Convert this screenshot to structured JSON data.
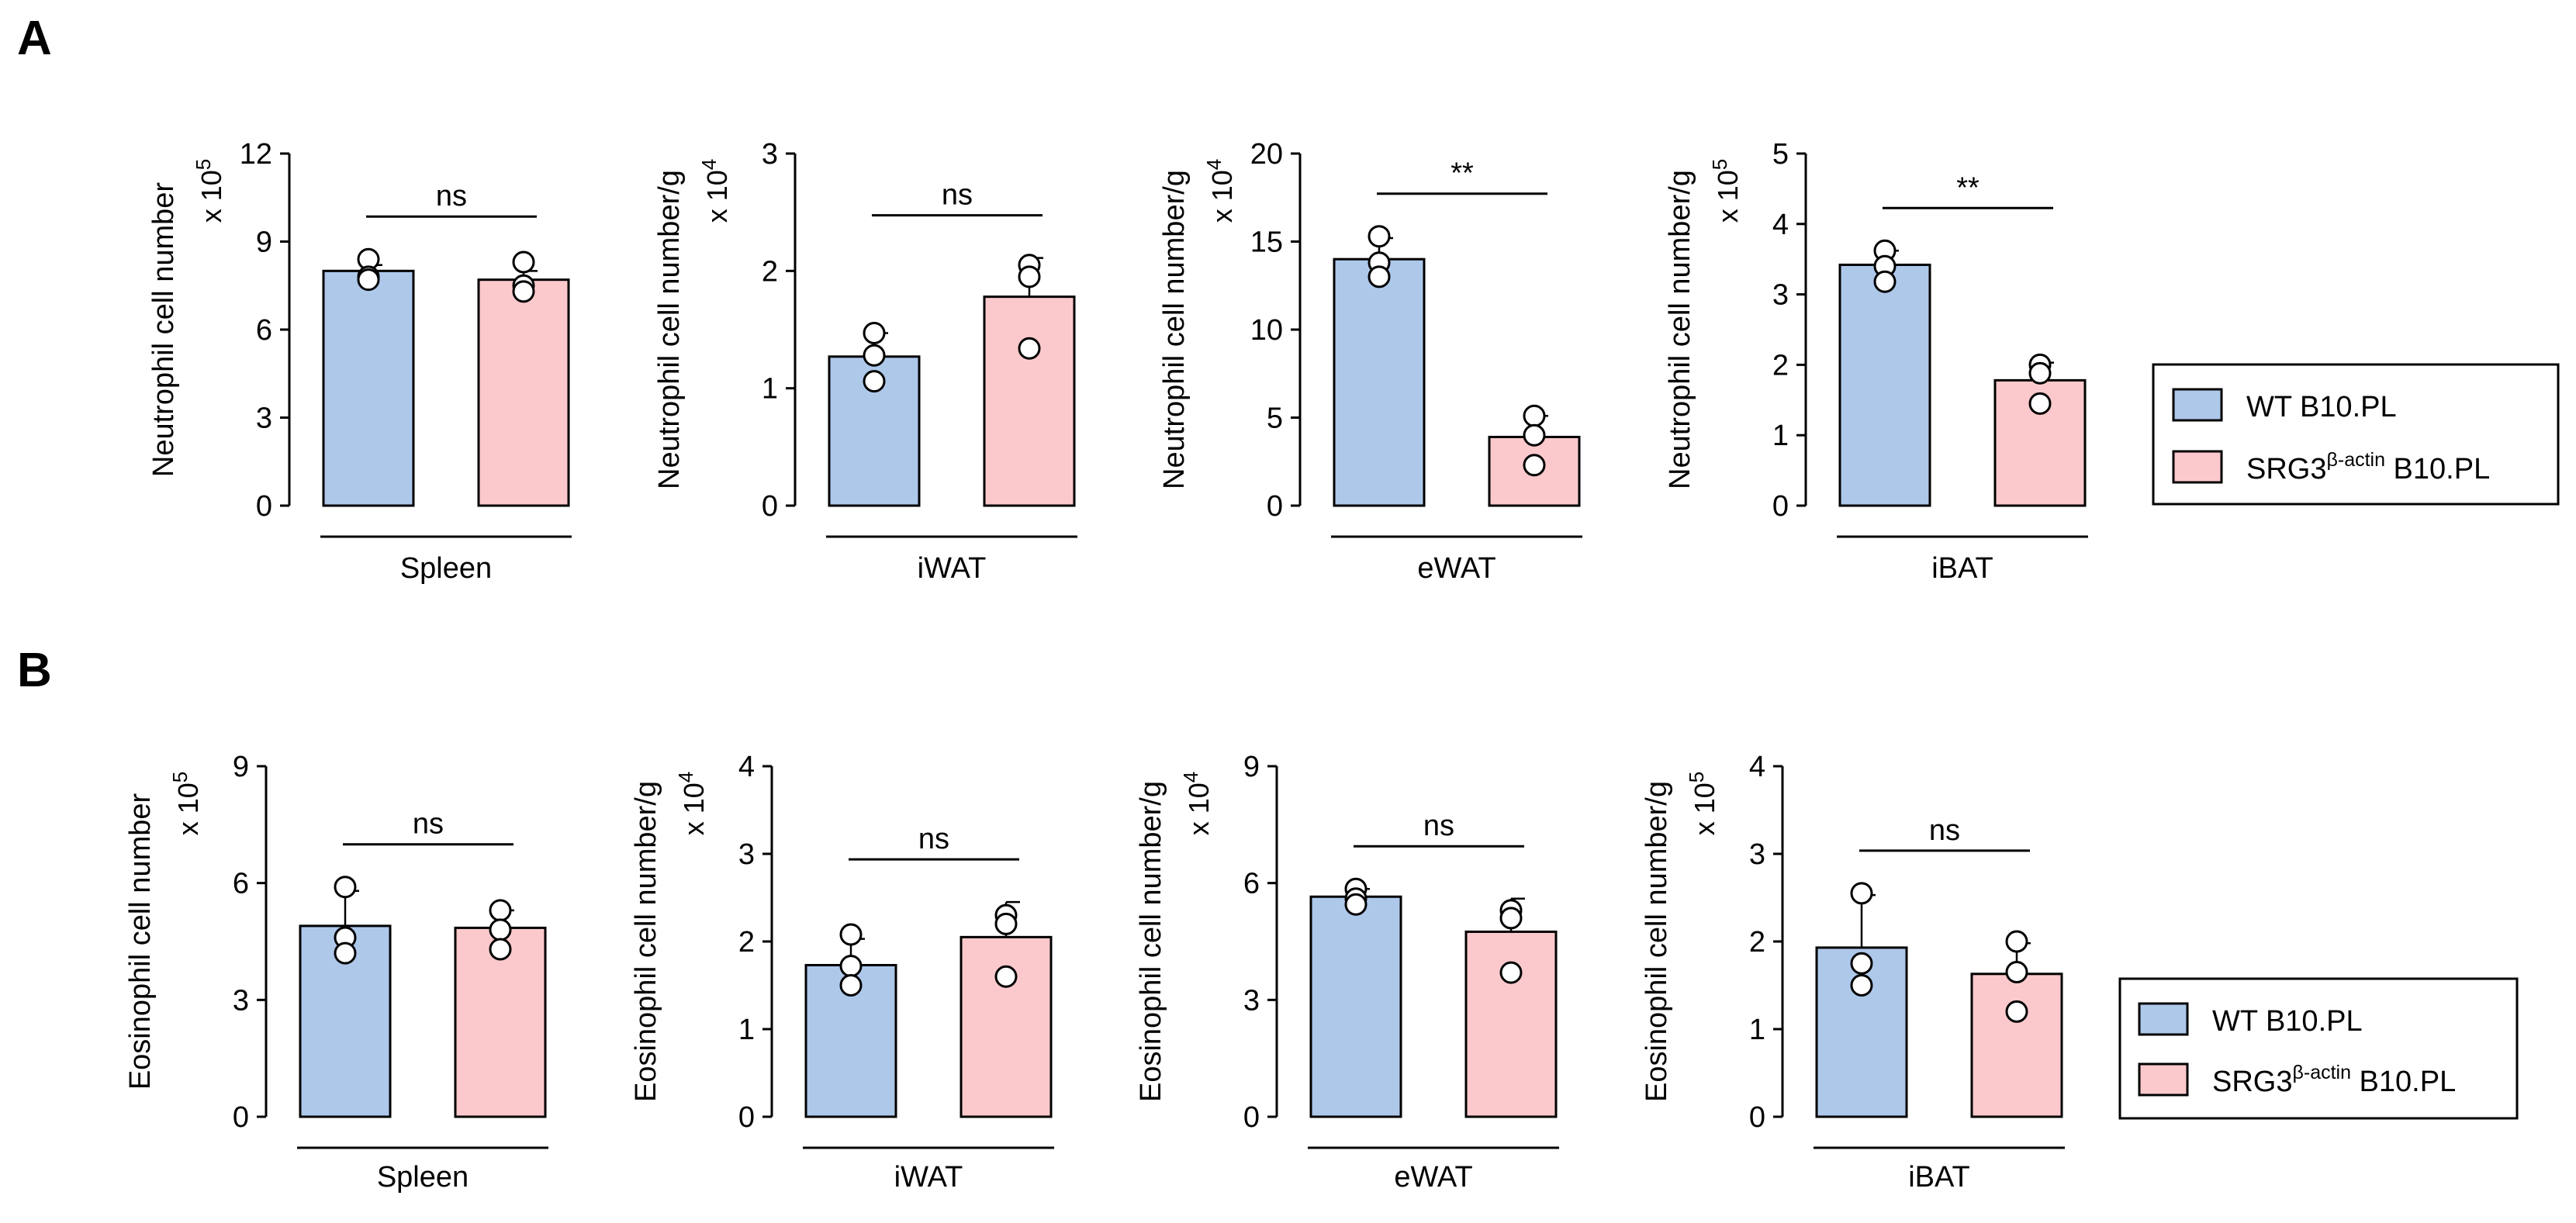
{
  "colors": {
    "wt": "#aec8ea",
    "srg3": "#fbc9cc",
    "stroke": "#000000",
    "point_fill": "#ffffff"
  },
  "panel_labels": [
    "A",
    "B"
  ],
  "legends": [
    {
      "wt_label": "WT B10.PL",
      "srg3_prefix": "SRG3",
      "srg3_sup": "β-actin",
      "srg3_suffix": " B10.PL"
    },
    {
      "wt_label": "WT B10.PL",
      "srg3_prefix": "SRG3",
      "srg3_sup": "β-actin",
      "srg3_suffix": " B10.PL"
    }
  ],
  "chart_data": [
    {
      "type": "bar",
      "panel": "A",
      "xlabel": "Spleen",
      "ylabel": "Neutrophil cell number",
      "scale_base": "x 10",
      "scale_exp": "5",
      "ylim": [
        0,
        12
      ],
      "yticks": [
        0,
        3,
        6,
        9,
        12
      ],
      "categories": [
        "WT B10.PL",
        "SRG3β-actin B10.PL"
      ],
      "values": [
        8.0,
        7.7
      ],
      "errors": [
        0.2,
        0.3
      ],
      "points": [
        [
          8.4,
          7.8,
          7.7
        ],
        [
          8.3,
          7.5,
          7.3
        ]
      ],
      "significance": "ns"
    },
    {
      "type": "bar",
      "panel": "A",
      "xlabel": "iWAT",
      "ylabel": "Neutrophil cell number/g",
      "scale_base": "x 10",
      "scale_exp": "4",
      "ylim": [
        0,
        3
      ],
      "yticks": [
        0,
        1,
        2,
        3
      ],
      "categories": [
        "WT B10.PL",
        "SRG3β-actin B10.PL"
      ],
      "values": [
        1.27,
        1.78
      ],
      "errors": [
        0.2,
        0.33
      ],
      "points": [
        [
          1.47,
          1.28,
          1.06
        ],
        [
          2.05,
          1.95,
          1.34
        ]
      ],
      "significance": "ns"
    },
    {
      "type": "bar",
      "panel": "A",
      "xlabel": "eWAT",
      "ylabel": "Neutrophil cell number/g",
      "scale_base": "x 10",
      "scale_exp": "4",
      "ylim": [
        0,
        20
      ],
      "yticks": [
        0,
        5,
        10,
        15,
        20
      ],
      "categories": [
        "WT B10.PL",
        "SRG3β-actin B10.PL"
      ],
      "values": [
        14.0,
        3.9
      ],
      "errors": [
        1.2,
        1.2
      ],
      "points": [
        [
          15.3,
          13.8,
          13.0
        ],
        [
          5.1,
          4.0,
          2.3
        ]
      ],
      "significance": "**"
    },
    {
      "type": "bar",
      "panel": "A",
      "xlabel": "iBAT",
      "ylabel": "Neutrophil cell number/g",
      "scale_base": "x 10",
      "scale_exp": "5",
      "ylim": [
        0,
        5
      ],
      "yticks": [
        0,
        1,
        2,
        3,
        4,
        5
      ],
      "categories": [
        "WT B10.PL",
        "SRG3β-actin B10.PL"
      ],
      "values": [
        3.42,
        1.78
      ],
      "errors": [
        0.2,
        0.25
      ],
      "points": [
        [
          3.62,
          3.4,
          3.18
        ],
        [
          2.0,
          1.88,
          1.45
        ]
      ],
      "significance": "**"
    },
    {
      "type": "bar",
      "panel": "B",
      "xlabel": "Spleen",
      "ylabel": "Eosinophil cell number",
      "scale_base": "x 10",
      "scale_exp": "5",
      "ylim": [
        0,
        9
      ],
      "yticks": [
        0,
        3,
        6,
        9
      ],
      "categories": [
        "WT B10.PL",
        "SRG3β-actin B10.PL"
      ],
      "values": [
        4.9,
        4.85
      ],
      "errors": [
        0.9,
        0.45
      ],
      "points": [
        [
          5.9,
          4.6,
          4.2
        ],
        [
          5.3,
          4.8,
          4.3
        ]
      ],
      "significance": "ns"
    },
    {
      "type": "bar",
      "panel": "B",
      "xlabel": "iWAT",
      "ylabel": "Eosinophil cell number/g",
      "scale_base": "x 10",
      "scale_exp": "4",
      "ylim": [
        0,
        4
      ],
      "yticks": [
        0,
        1,
        2,
        3,
        4
      ],
      "categories": [
        "WT B10.PL",
        "SRG3β-actin B10.PL"
      ],
      "values": [
        1.73,
        2.05
      ],
      "errors": [
        0.3,
        0.4
      ],
      "points": [
        [
          2.08,
          1.72,
          1.5
        ],
        [
          2.3,
          2.2,
          1.6
        ]
      ],
      "significance": "ns"
    },
    {
      "type": "bar",
      "panel": "B",
      "xlabel": "eWAT",
      "ylabel": "Eosinophil cell number/g",
      "scale_base": "x 10",
      "scale_exp": "4",
      "ylim": [
        0,
        9
      ],
      "yticks": [
        0,
        3,
        6,
        9
      ],
      "categories": [
        "WT B10.PL",
        "SRG3β-actin B10.PL"
      ],
      "values": [
        5.65,
        4.75
      ],
      "errors": [
        0.2,
        0.85
      ],
      "points": [
        [
          5.85,
          5.6,
          5.45
        ],
        [
          5.3,
          5.1,
          3.7
        ]
      ],
      "significance": "ns"
    },
    {
      "type": "bar",
      "panel": "B",
      "xlabel": "iBAT",
      "ylabel": "Eosinophil cell number/g",
      "scale_base": "x 10",
      "scale_exp": "5",
      "ylim": [
        0,
        4
      ],
      "yticks": [
        0,
        1,
        2,
        3,
        4
      ],
      "categories": [
        "WT B10.PL",
        "SRG3β-actin B10.PL"
      ],
      "values": [
        1.93,
        1.63
      ],
      "errors": [
        0.6,
        0.35
      ],
      "points": [
        [
          2.55,
          1.75,
          1.5
        ],
        [
          2.0,
          1.65,
          1.2
        ]
      ],
      "significance": "ns"
    }
  ]
}
